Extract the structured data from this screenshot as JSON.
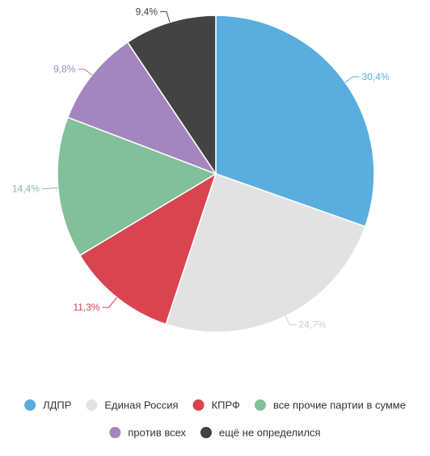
{
  "chart_data": {
    "type": "pie",
    "title": "",
    "categories": [
      "ЛДПР",
      "Единая Россия",
      "КПРФ",
      "все прочие партии в сумме",
      "против всех",
      "ещё не определился"
    ],
    "values": [
      30.4,
      24.7,
      11.3,
      14.4,
      9.8,
      9.4
    ],
    "value_labels": [
      "30,4%",
      "24,7%",
      "11,3%",
      "14,4%",
      "9,8%",
      "9,4%"
    ],
    "colors": [
      "#5aaede",
      "#e2e2e2",
      "#d94451",
      "#82bf9b",
      "#a386be",
      "#434343"
    ],
    "legend_placement": "bottom"
  }
}
